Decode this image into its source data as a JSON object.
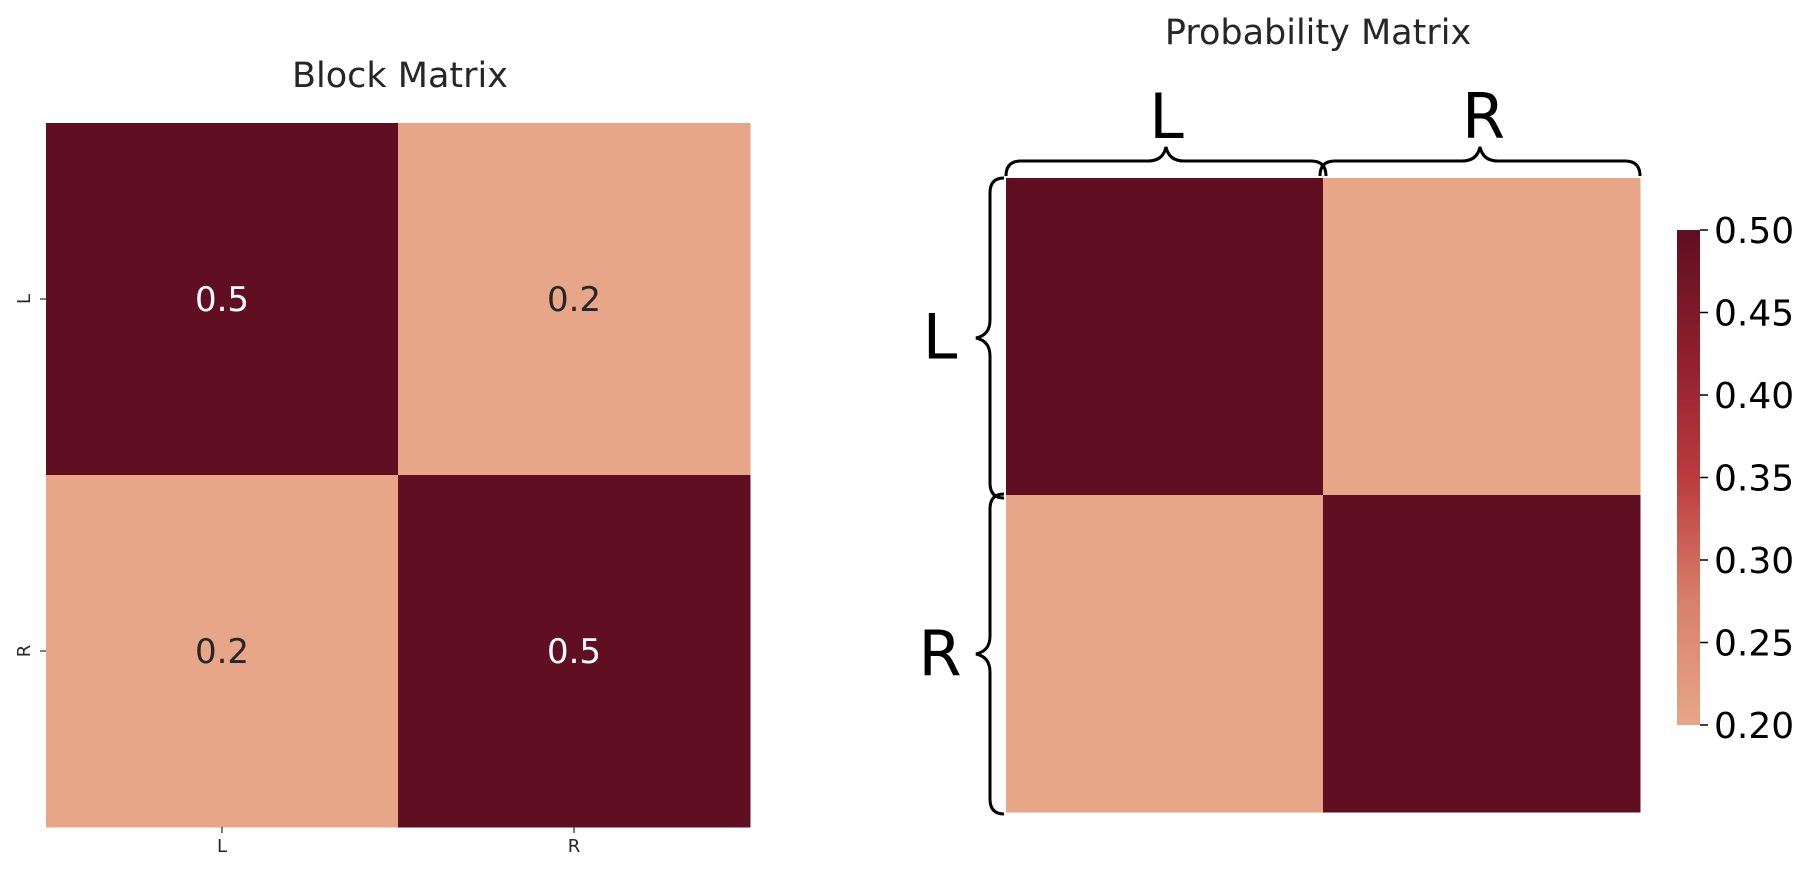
{
  "chart_data": [
    {
      "type": "heatmap",
      "title": "Block Matrix",
      "row_labels": [
        "L",
        "R"
      ],
      "col_labels": [
        "L",
        "R"
      ],
      "values": [
        [
          0.5,
          0.2
        ],
        [
          0.2,
          0.5
        ]
      ],
      "cell_annotations": [
        [
          "0.5",
          "0.2"
        ],
        [
          "0.2",
          "0.5"
        ]
      ],
      "colorbar": false
    },
    {
      "type": "heatmap",
      "title": "Probability Matrix",
      "row_labels": [
        "L",
        "R"
      ],
      "col_labels": [
        "L",
        "R"
      ],
      "values": [
        [
          0.5,
          0.2
        ],
        [
          0.2,
          0.5
        ]
      ],
      "brackets": "curly braces group rows (left) and columns (top)",
      "colorbar": true,
      "colorbar_ticks": [
        "0.50",
        "0.45",
        "0.40",
        "0.35",
        "0.30",
        "0.25",
        "0.20"
      ],
      "colorbar_range": [
        0.2,
        0.5
      ]
    }
  ],
  "colors": {
    "high": "#5f0f21",
    "low": "#e7a688",
    "mid": "#b02d34",
    "annotation_dark_bg": "#ffffff",
    "annotation_light_bg": "#262626"
  }
}
